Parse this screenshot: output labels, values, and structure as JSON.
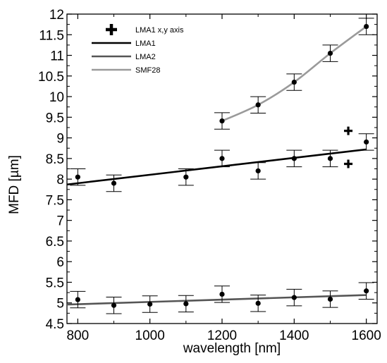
{
  "chart_data": {
    "type": "scatter",
    "xlabel": "wavelength [nm]",
    "ylabel": "MFD [µm]",
    "xlim": [
      770,
      1630
    ],
    "ylim": [
      4.5,
      12
    ],
    "x_ticks": [
      800,
      1000,
      1200,
      1400,
      1600
    ],
    "x_tick_labels": [
      "800",
      "1000",
      "1200",
      "1400",
      "1600"
    ],
    "y_ticks": [
      4.5,
      5,
      5.5,
      6,
      6.5,
      7,
      7.5,
      8,
      8.5,
      9,
      9.5,
      10,
      10.5,
      11,
      11.5,
      12
    ],
    "y_tick_labels": [
      "4.5",
      "5",
      "5.5",
      "6",
      "6.5",
      "7",
      "7.5",
      "8",
      "8.5",
      "9",
      "9.5",
      "10",
      "10.5",
      "11",
      "11.5",
      "12"
    ],
    "grid": false,
    "legend_position": "top-left",
    "legend": [
      {
        "label": "LMA1 x,y axis",
        "marker": "plus",
        "color": "#000000"
      },
      {
        "label": "LMA1",
        "marker": "line",
        "color": "#000000"
      },
      {
        "label": "LMA2",
        "marker": "line",
        "color": "#555555"
      },
      {
        "label": "SMF28",
        "marker": "line",
        "color": "#9a9a9a"
      }
    ],
    "series": [
      {
        "name": "LMA1",
        "color": "#000000",
        "marker": "dot",
        "x": [
          800,
          900,
          1100,
          1200,
          1300,
          1400,
          1500,
          1600
        ],
        "y": [
          8.05,
          7.9,
          8.05,
          8.5,
          8.2,
          8.5,
          8.5,
          8.9
        ],
        "err": [
          0.2,
          0.2,
          0.2,
          0.2,
          0.2,
          0.2,
          0.2,
          0.2
        ],
        "fit": {
          "x": [
            770,
            1600
          ],
          "y": [
            7.87,
            8.72
          ]
        }
      },
      {
        "name": "LMA1 x,y axis",
        "color": "#000000",
        "marker": "plus",
        "x": [
          1550,
          1550
        ],
        "y": [
          9.17,
          8.37
        ]
      },
      {
        "name": "LMA2",
        "color": "#555555",
        "marker": "dot",
        "x": [
          800,
          900,
          1000,
          1100,
          1200,
          1300,
          1400,
          1500,
          1600
        ],
        "y": [
          5.08,
          4.94,
          4.97,
          4.98,
          5.21,
          4.99,
          5.13,
          5.09,
          5.29
        ],
        "err": [
          0.2,
          0.2,
          0.2,
          0.2,
          0.2,
          0.2,
          0.2,
          0.2,
          0.2
        ],
        "fit": {
          "x": [
            770,
            1600
          ],
          "y": [
            4.96,
            5.19
          ]
        }
      },
      {
        "name": "SMF28",
        "color": "#9a9a9a",
        "marker": "dot",
        "x": [
          1200,
          1300,
          1400,
          1500,
          1600
        ],
        "y": [
          9.41,
          9.8,
          10.35,
          11.05,
          11.7
        ],
        "err": [
          0.2,
          0.2,
          0.2,
          0.2,
          0.2
        ],
        "fit": {
          "x": [
            1200,
            1300,
            1400,
            1500,
            1600
          ],
          "y": [
            9.41,
            9.8,
            10.35,
            11.05,
            11.7
          ]
        }
      }
    ]
  }
}
